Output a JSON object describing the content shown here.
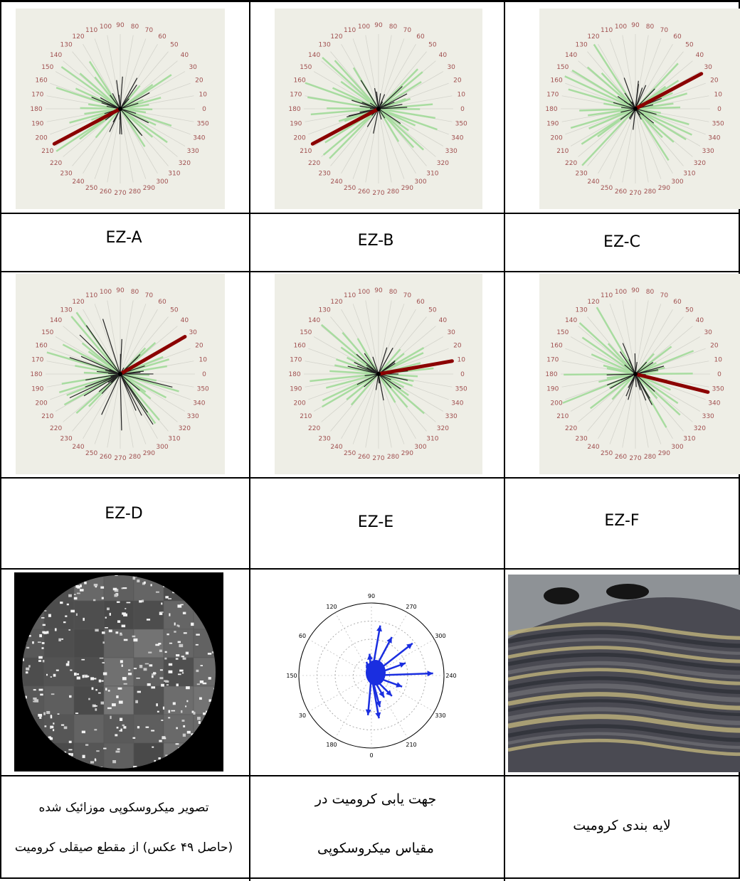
{
  "panels": [
    {
      "label": "EZ-A",
      "main_azimuth": 208
    },
    {
      "label": "EZ-B",
      "main_azimuth": 208
    },
    {
      "label": "EZ-C",
      "main_azimuth": 28
    },
    {
      "label": "EZ-D",
      "main_azimuth": 30
    },
    {
      "label": "EZ-E",
      "main_azimuth": 10
    },
    {
      "label": "EZ-F",
      "main_azimuth": 346
    }
  ],
  "rose_ticks": [
    "0",
    "10",
    "20",
    "30",
    "40",
    "50",
    "60",
    "70",
    "80",
    "90",
    "100",
    "110",
    "120",
    "130",
    "140",
    "150",
    "160",
    "170",
    "180",
    "190",
    "200",
    "210",
    "220",
    "230",
    "240",
    "250",
    "260",
    "270",
    "280",
    "290",
    "300",
    "310",
    "320",
    "330",
    "340",
    "350"
  ],
  "polar": {
    "tick_labels": [
      "90",
      "120",
      "150",
      "180",
      "210",
      "240",
      "270",
      "300",
      "330",
      "0",
      "30",
      "60"
    ],
    "label_texts": [
      "90",
      "120",
      "60",
      "150",
      "30",
      "180",
      "0",
      "210",
      "330",
      "240",
      "300",
      "270"
    ]
  },
  "captions": {
    "micro_line1": "تصویر میکروسکوپی موزائیک شده",
    "micro_line2": "(حاصل ۴۹ عکس) از مقطع صیقلی کرومیت",
    "polar_line1": "جهت یابی کرومیت در",
    "polar_line2": "مقیاس میکروسکوپی",
    "layering": "لایه بندی کرومیت"
  },
  "colors": {
    "main_vector": "#8b0000",
    "green_bins": "#a8dca0",
    "black_bins": "#222222",
    "tick_text": "#a05050",
    "polar_arrow": "#1a2ee0",
    "rose_bg": "#eeeee6"
  }
}
